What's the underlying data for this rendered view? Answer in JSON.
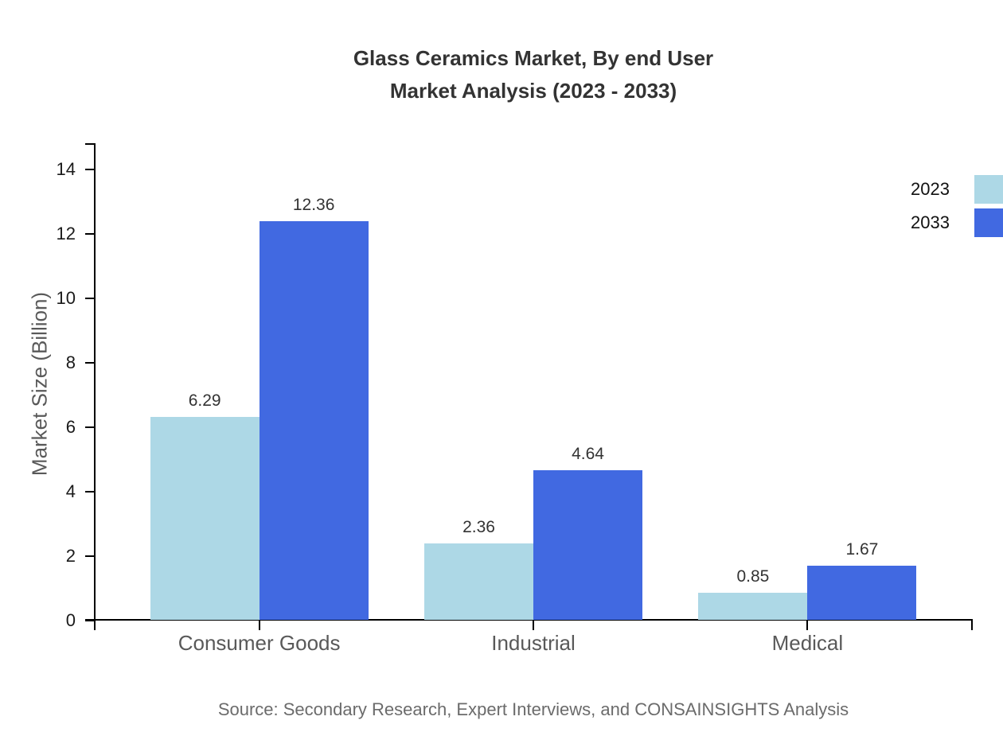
{
  "chart": {
    "title_line1": "Glass Ceramics Market, By end User",
    "title_line2": "Market Analysis (2023 - 2033)",
    "source": "Source: Secondary Research, Expert Interviews, and CONSAINSIGHTS Analysis"
  },
  "chart_data": {
    "type": "bar",
    "title": "Glass Ceramics Market, By end User — Market Analysis (2023 - 2033)",
    "categories": [
      "Consumer Goods",
      "Industrial",
      "Medical"
    ],
    "series": [
      {
        "name": "2023",
        "color": "#ADD8E6",
        "values": [
          6.29,
          2.36,
          0.85
        ]
      },
      {
        "name": "2033",
        "color": "#4169E1",
        "values": [
          12.36,
          4.64,
          1.67
        ]
      }
    ],
    "xlabel": "",
    "ylabel": "Market Size (Billion)",
    "ylim": [
      0,
      14.8
    ],
    "yticks": [
      0,
      2,
      4,
      6,
      8,
      10,
      12,
      14
    ],
    "grid": false,
    "legend_position": "top-right",
    "value_labels": true,
    "value_label_format": "2dp",
    "axis_color": "#000000",
    "text_colors": {
      "title": "#333333",
      "tick_labels": "#1a1a1a",
      "category_labels": "#595959",
      "value_labels": "#333333",
      "source": "#6b6b6b"
    }
  }
}
